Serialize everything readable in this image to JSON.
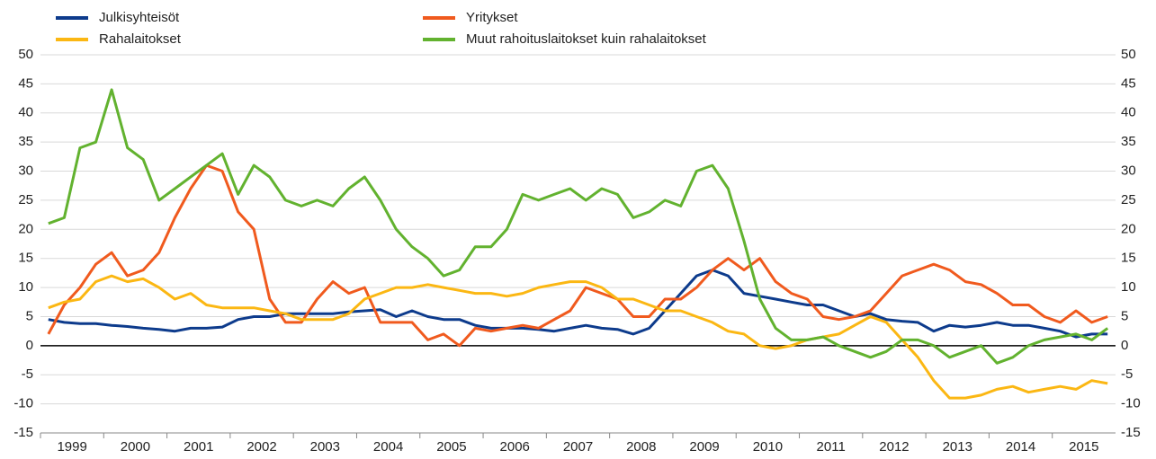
{
  "chart_data": {
    "type": "line",
    "categories": [
      "1999",
      null,
      null,
      null,
      "2000",
      null,
      null,
      null,
      "2001",
      null,
      null,
      null,
      "2002",
      null,
      null,
      null,
      "2003",
      null,
      null,
      null,
      "2004",
      null,
      null,
      null,
      "2005",
      null,
      null,
      null,
      "2006",
      null,
      null,
      null,
      "2007",
      null,
      null,
      null,
      "2008",
      null,
      null,
      null,
      "2009",
      null,
      null,
      null,
      "2010",
      null,
      null,
      null,
      "2011",
      null,
      null,
      null,
      "2012",
      null,
      null,
      null,
      "2013",
      null,
      null,
      null,
      "2014",
      null,
      null,
      null,
      "2015",
      null,
      null,
      null
    ],
    "series": [
      {
        "name": "Julkisyhteisöt",
        "color": "#0d3b8c",
        "values": [
          4.5,
          4,
          3.8,
          3.8,
          3.5,
          3.3,
          3,
          2.8,
          2.5,
          3,
          3,
          3.2,
          4.5,
          5,
          5,
          5.5,
          5.5,
          5.5,
          5.5,
          5.8,
          6,
          6.2,
          5,
          6,
          5,
          4.5,
          4.5,
          3.5,
          3,
          3,
          3,
          2.8,
          2.5,
          3,
          3.5,
          3,
          2.8,
          2,
          3,
          6,
          9,
          12,
          13,
          12,
          9,
          8.5,
          8,
          7.5,
          7,
          7,
          6,
          5,
          5.5,
          4.5,
          4.2,
          4,
          2.5,
          3.5,
          3.2,
          3.5,
          4,
          3.5,
          3.5,
          3,
          2.5,
          1.5,
          2,
          2
        ]
      },
      {
        "name": "Yritykset",
        "color": "#f05a1e",
        "values": [
          2,
          7,
          10,
          14,
          16,
          12,
          13,
          16,
          22,
          27,
          31,
          30,
          23,
          20,
          8,
          4,
          4,
          8,
          11,
          9,
          10,
          4,
          4,
          4,
          1,
          2,
          0,
          3,
          2.5,
          3,
          3.5,
          3,
          4.5,
          6,
          10,
          9,
          8,
          5,
          5,
          8,
          8,
          10,
          13,
          15,
          13,
          15,
          11,
          9,
          8,
          5,
          4.5,
          5,
          6,
          9,
          12,
          13,
          14,
          13,
          11,
          10.5,
          9,
          7,
          7,
          5,
          4,
          6,
          4,
          5
        ]
      },
      {
        "name": "Rahalaitokset",
        "color": "#fbb713",
        "values": [
          6.5,
          7.5,
          8,
          11,
          12,
          11,
          11.5,
          10,
          8,
          9,
          7,
          6.5,
          6.5,
          6.5,
          6,
          5.5,
          4.5,
          4.5,
          4.5,
          5.5,
          8,
          9,
          10,
          10,
          10.5,
          10,
          9.5,
          9,
          9,
          8.5,
          9,
          10,
          10.5,
          11,
          11,
          10,
          8,
          8,
          7,
          6,
          6,
          5,
          4,
          2.5,
          2,
          0,
          -0.5,
          0,
          1,
          1.5,
          2,
          3.5,
          5,
          4,
          1,
          -2,
          -6,
          -9,
          -9,
          -8.5,
          -7.5,
          -7,
          -8,
          -7.5,
          -7,
          -7.5,
          -6,
          -6.5
        ]
      },
      {
        "name": "Muut rahoituslaitokset kuin rahalaitokset",
        "color": "#62b22f",
        "values": [
          21,
          22,
          34,
          35,
          44,
          34,
          32,
          25,
          27,
          29,
          31,
          33,
          26,
          31,
          29,
          25,
          24,
          25,
          24,
          27,
          29,
          25,
          20,
          17,
          15,
          12,
          13,
          17,
          17,
          20,
          26,
          25,
          26,
          27,
          25,
          27,
          26,
          22,
          23,
          25,
          24,
          30,
          31,
          27,
          18,
          8,
          3,
          1,
          1,
          1.5,
          0,
          -1,
          -2,
          -1,
          1,
          1,
          0,
          -2,
          -1,
          0,
          -3,
          -2,
          0,
          1,
          1.5,
          2,
          1,
          3
        ]
      }
    ],
    "ylim": [
      -15,
      50
    ],
    "yticks": [
      -15,
      -10,
      -5,
      0,
      5,
      10,
      15,
      20,
      25,
      30,
      35,
      40,
      45,
      50
    ],
    "grid": true
  }
}
